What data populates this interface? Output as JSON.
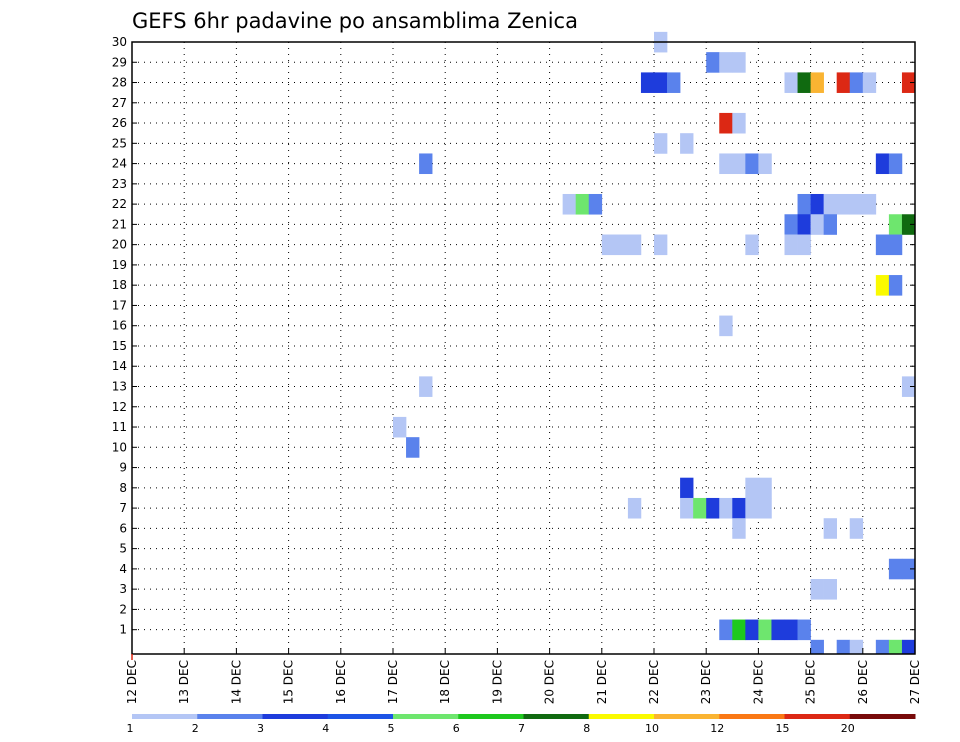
{
  "chart_data": {
    "type": "heatmap",
    "title": "GEFS 6hr padavine po ansamblima Zenica",
    "x_labels": [
      "12 DEC",
      "13 DEC",
      "14 DEC",
      "15 DEC",
      "16 DEC",
      "17 DEC",
      "18 DEC",
      "19 DEC",
      "20 DEC",
      "21 DEC",
      "22 DEC",
      "23 DEC",
      "24 DEC",
      "25 DEC",
      "26 DEC",
      "27 DEC"
    ],
    "y_labels": [
      "1",
      "2",
      "3",
      "4",
      "5",
      "6",
      "7",
      "8",
      "9",
      "10",
      "11",
      "12",
      "13",
      "14",
      "15",
      "16",
      "17",
      "18",
      "19",
      "20",
      "21",
      "22",
      "23",
      "24",
      "25",
      "26",
      "27",
      "28",
      "29",
      "30"
    ],
    "x_range": [
      0,
      60
    ],
    "y_range": [
      0,
      30
    ],
    "grid": true,
    "levels": [
      "1",
      "2",
      "3",
      "4",
      "5",
      "6",
      "7",
      "8",
      "10",
      "12",
      "15",
      "20"
    ],
    "level_colors": [
      "#b4c6f5",
      "#5a82ec",
      "#1e3cdc",
      "#1d54e6",
      "#6ee66e",
      "#1ec81e",
      "#106a10",
      "#fafa00",
      "#fab432",
      "#fa7814",
      "#dc2814",
      "#780a0a"
    ],
    "cells": [
      {
        "step": 41,
        "member": 30,
        "cls": 1
      },
      {
        "step": 45,
        "member": 29,
        "cls": 2
      },
      {
        "step": 46,
        "member": 29,
        "cls": 1
      },
      {
        "step": 47,
        "member": 29,
        "cls": 1
      },
      {
        "step": 40,
        "member": 28,
        "cls": 3
      },
      {
        "step": 41,
        "member": 28,
        "cls": 3
      },
      {
        "step": 42,
        "member": 28,
        "cls": 2
      },
      {
        "step": 51,
        "member": 28,
        "cls": 1
      },
      {
        "step": 52,
        "member": 28,
        "cls": 7
      },
      {
        "step": 53,
        "member": 28,
        "cls": 9
      },
      {
        "step": 55,
        "member": 28,
        "cls": 11
      },
      {
        "step": 56,
        "member": 28,
        "cls": 2
      },
      {
        "step": 57,
        "member": 28,
        "cls": 1
      },
      {
        "step": 60,
        "member": 28,
        "cls": 11
      },
      {
        "step": 46,
        "member": 26,
        "cls": 11
      },
      {
        "step": 47,
        "member": 26,
        "cls": 1
      },
      {
        "step": 41,
        "member": 25,
        "cls": 1
      },
      {
        "step": 43,
        "member": 25,
        "cls": 1
      },
      {
        "step": 23,
        "member": 24,
        "cls": 2
      },
      {
        "step": 46,
        "member": 24,
        "cls": 1
      },
      {
        "step": 47,
        "member": 24,
        "cls": 1
      },
      {
        "step": 48,
        "member": 24,
        "cls": 2
      },
      {
        "step": 49,
        "member": 24,
        "cls": 1
      },
      {
        "step": 58,
        "member": 24,
        "cls": 3
      },
      {
        "step": 59,
        "member": 24,
        "cls": 2
      },
      {
        "step": 34,
        "member": 22,
        "cls": 1
      },
      {
        "step": 35,
        "member": 22,
        "cls": 5
      },
      {
        "step": 36,
        "member": 22,
        "cls": 2
      },
      {
        "step": 52,
        "member": 22,
        "cls": 2
      },
      {
        "step": 53,
        "member": 22,
        "cls": 3
      },
      {
        "step": 54,
        "member": 22,
        "cls": 1
      },
      {
        "step": 55,
        "member": 22,
        "cls": 1
      },
      {
        "step": 56,
        "member": 22,
        "cls": 1
      },
      {
        "step": 57,
        "member": 22,
        "cls": 1
      },
      {
        "step": 51,
        "member": 21,
        "cls": 2
      },
      {
        "step": 52,
        "member": 21,
        "cls": 3
      },
      {
        "step": 53,
        "member": 21,
        "cls": 1
      },
      {
        "step": 54,
        "member": 21,
        "cls": 2
      },
      {
        "step": 59,
        "member": 21,
        "cls": 5
      },
      {
        "step": 60,
        "member": 21,
        "cls": 7
      },
      {
        "step": 37,
        "member": 20,
        "cls": 1
      },
      {
        "step": 38,
        "member": 20,
        "cls": 1
      },
      {
        "step": 39,
        "member": 20,
        "cls": 1
      },
      {
        "step": 41,
        "member": 20,
        "cls": 1
      },
      {
        "step": 48,
        "member": 20,
        "cls": 1
      },
      {
        "step": 51,
        "member": 20,
        "cls": 1
      },
      {
        "step": 52,
        "member": 20,
        "cls": 1
      },
      {
        "step": 58,
        "member": 20,
        "cls": 2
      },
      {
        "step": 59,
        "member": 20,
        "cls": 2
      },
      {
        "step": 58,
        "member": 18,
        "cls": 8
      },
      {
        "step": 59,
        "member": 18,
        "cls": 2
      },
      {
        "step": 46,
        "member": 16,
        "cls": 1
      },
      {
        "step": 23,
        "member": 13,
        "cls": 1
      },
      {
        "step": 60,
        "member": 13,
        "cls": 1
      },
      {
        "step": 21,
        "member": 11,
        "cls": 1
      },
      {
        "step": 22,
        "member": 10,
        "cls": 2
      },
      {
        "step": 43,
        "member": 8,
        "cls": 3
      },
      {
        "step": 48,
        "member": 8,
        "cls": 1
      },
      {
        "step": 49,
        "member": 8,
        "cls": 1
      },
      {
        "step": 39,
        "member": 7,
        "cls": 1
      },
      {
        "step": 43,
        "member": 7,
        "cls": 1
      },
      {
        "step": 44,
        "member": 7,
        "cls": 5
      },
      {
        "step": 45,
        "member": 7,
        "cls": 3
      },
      {
        "step": 46,
        "member": 7,
        "cls": 1
      },
      {
        "step": 47,
        "member": 7,
        "cls": 3
      },
      {
        "step": 48,
        "member": 7,
        "cls": 1
      },
      {
        "step": 49,
        "member": 7,
        "cls": 1
      },
      {
        "step": 47,
        "member": 6,
        "cls": 1
      },
      {
        "step": 54,
        "member": 6,
        "cls": 1
      },
      {
        "step": 56,
        "member": 6,
        "cls": 1
      },
      {
        "step": 59,
        "member": 4,
        "cls": 2
      },
      {
        "step": 60,
        "member": 4,
        "cls": 2
      },
      {
        "step": 53,
        "member": 3,
        "cls": 1
      },
      {
        "step": 54,
        "member": 3,
        "cls": 1
      },
      {
        "step": 46,
        "member": 1,
        "cls": 2
      },
      {
        "step": 47,
        "member": 1,
        "cls": 6
      },
      {
        "step": 48,
        "member": 1,
        "cls": 3
      },
      {
        "step": 49,
        "member": 1,
        "cls": 5
      },
      {
        "step": 50,
        "member": 1,
        "cls": 3
      },
      {
        "step": 51,
        "member": 1,
        "cls": 3
      },
      {
        "step": 52,
        "member": 1,
        "cls": 2
      },
      {
        "step": 53,
        "member": 0,
        "cls": 2
      },
      {
        "step": 55,
        "member": 0,
        "cls": 2
      },
      {
        "step": 56,
        "member": 0,
        "cls": 1
      },
      {
        "step": 58,
        "member": 0,
        "cls": 2
      },
      {
        "step": 59,
        "member": 0,
        "cls": 5
      },
      {
        "step": 60,
        "member": 0,
        "cls": 3
      }
    ]
  }
}
